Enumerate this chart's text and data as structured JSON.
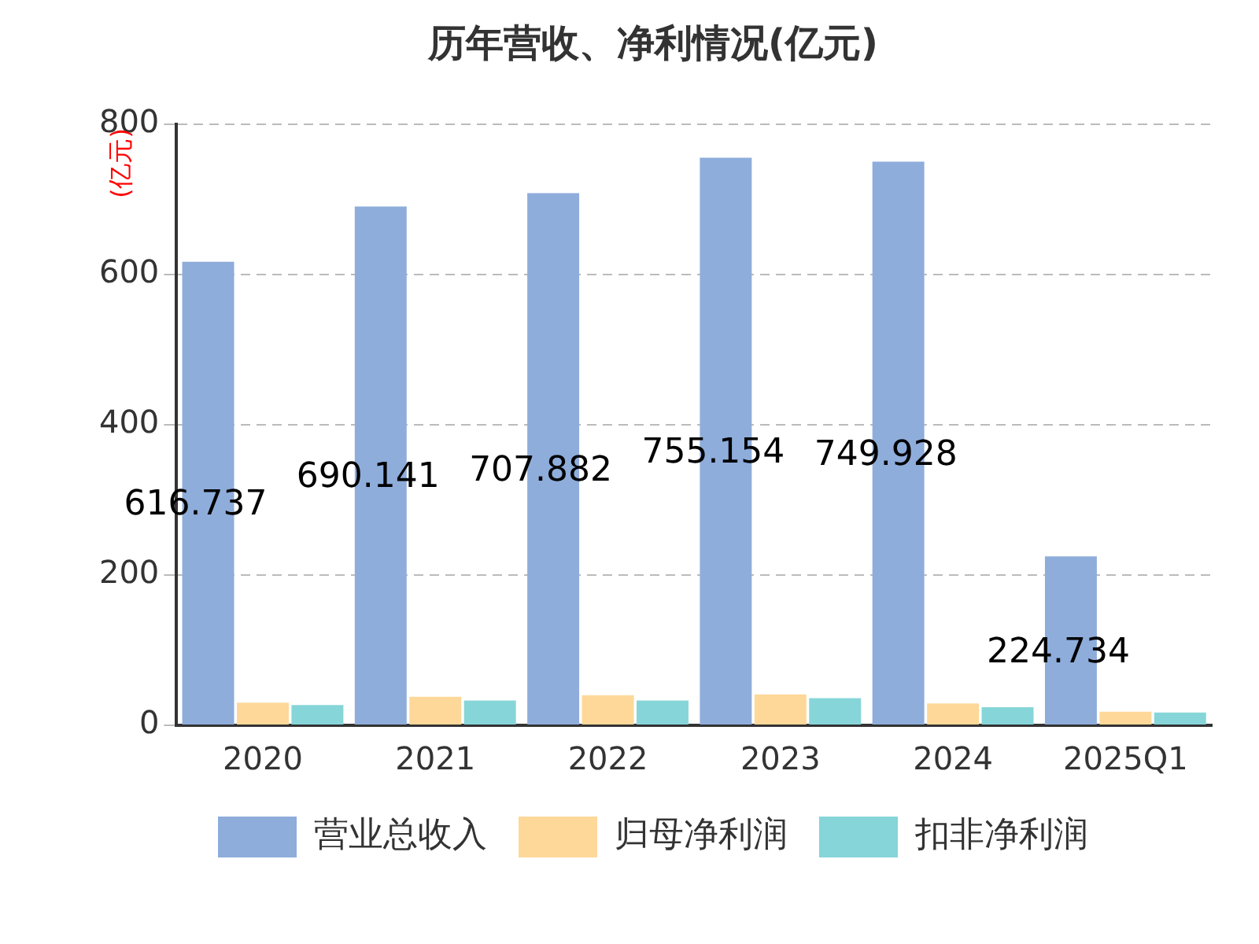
{
  "chart_data": {
    "type": "bar",
    "title": "历年营收、净利情况(亿元)",
    "ylabel": "(亿元)",
    "categories": [
      "2020",
      "2021",
      "2022",
      "2023",
      "2024",
      "2025Q1"
    ],
    "series": [
      {
        "name": "营业总收入",
        "color": "#8eaddb",
        "values": [
          616.737,
          690.141,
          707.882,
          755.154,
          749.928,
          224.734
        ],
        "value_labels": [
          "616.737",
          "690.141",
          "707.882",
          "755.154",
          "749.928",
          "224.734"
        ]
      },
      {
        "name": "归母净利润",
        "color": "#fdd899",
        "values": [
          30,
          38,
          40,
          41,
          29,
          18
        ]
      },
      {
        "name": "扣非净利润",
        "color": "#86d5d8",
        "values": [
          27,
          33,
          33,
          36,
          24,
          17
        ]
      }
    ],
    "ylim": [
      0,
      800
    ],
    "yticks": [
      0,
      200,
      400,
      600,
      800
    ],
    "grid": "y",
    "legend": "bottom"
  }
}
